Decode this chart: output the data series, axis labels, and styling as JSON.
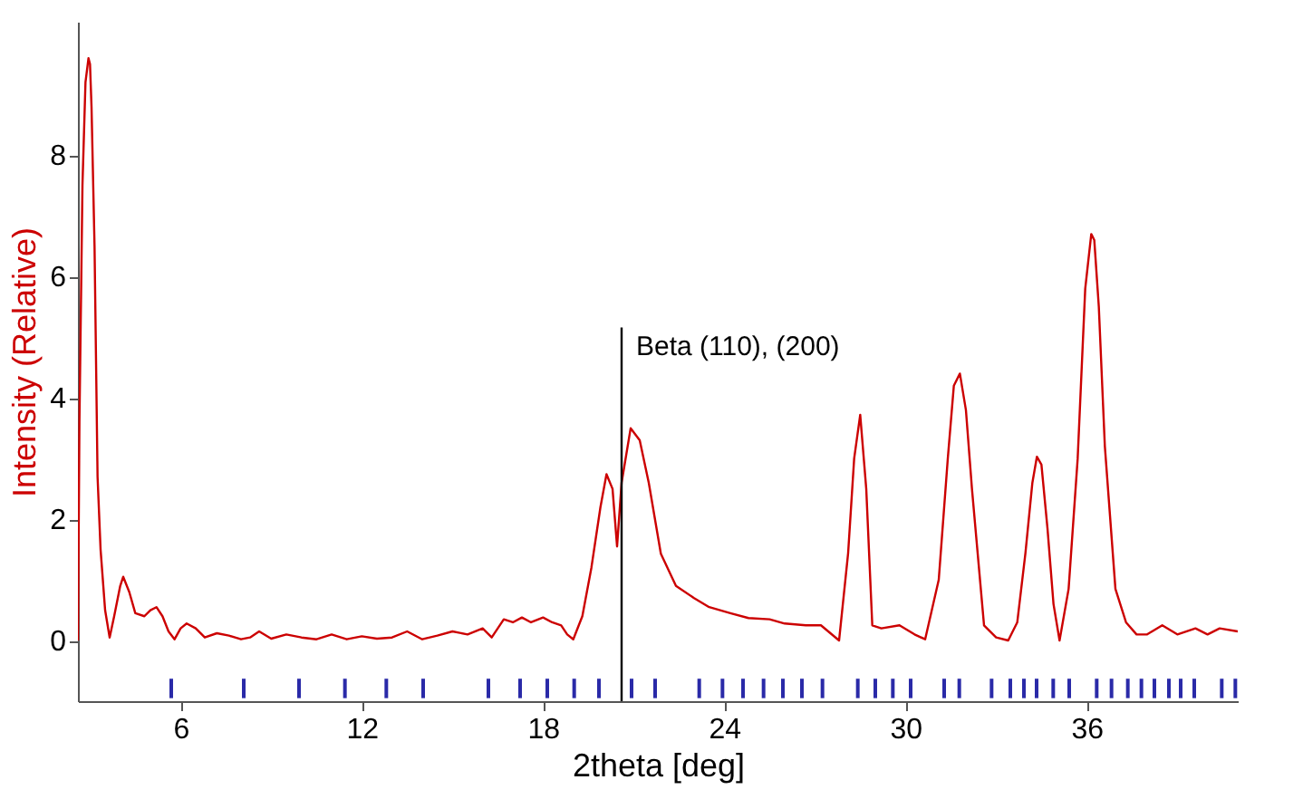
{
  "chart_data": {
    "type": "line",
    "xlabel": "2theta [deg]",
    "ylabel": "Intensity (Relative)",
    "xlim": [
      2.6,
      41
    ],
    "ylim": [
      -1,
      10.2
    ],
    "xticks": [
      6,
      12,
      18,
      24,
      30,
      36
    ],
    "yticks": [
      0,
      2,
      4,
      6,
      8
    ],
    "grid": false,
    "legend": false,
    "ref_lines": [
      {
        "axis": "x",
        "value": 20.6,
        "label": "Beta (110), (200)",
        "color": "#000000"
      }
    ],
    "series": [
      {
        "type": "line",
        "color": "#cc0000",
        "x": [
          2.6,
          2.65,
          2.75,
          2.85,
          2.95,
          3.0,
          3.05,
          3.15,
          3.25,
          3.35,
          3.5,
          3.65,
          3.8,
          4.0,
          4.1,
          4.3,
          4.5,
          4.8,
          5.0,
          5.2,
          5.4,
          5.6,
          5.8,
          6.0,
          6.2,
          6.5,
          6.8,
          7.2,
          7.6,
          8.0,
          8.3,
          8.6,
          9.0,
          9.5,
          10.0,
          10.5,
          11.0,
          11.5,
          12.0,
          12.5,
          13.0,
          13.5,
          14.0,
          14.5,
          15.0,
          15.5,
          16.0,
          16.3,
          16.7,
          17.0,
          17.3,
          17.6,
          18.0,
          18.3,
          18.6,
          18.8,
          19.0,
          19.3,
          19.6,
          19.9,
          20.1,
          20.3,
          20.45,
          20.6,
          20.9,
          21.2,
          21.5,
          21.9,
          22.4,
          23.0,
          23.5,
          24.2,
          24.8,
          25.5,
          26.0,
          26.7,
          27.2,
          27.8,
          28.1,
          28.3,
          28.5,
          28.7,
          28.9,
          29.2,
          29.8,
          30.3,
          30.65,
          31.1,
          31.4,
          31.6,
          31.8,
          32.0,
          32.2,
          32.6,
          33.0,
          33.4,
          33.7,
          33.97,
          34.2,
          34.35,
          34.5,
          34.7,
          34.9,
          35.1,
          35.4,
          35.7,
          35.95,
          36.15,
          36.25,
          36.4,
          36.6,
          36.95,
          37.3,
          37.65,
          38.0,
          38.5,
          39.0,
          39.6,
          40.0,
          40.4,
          41.0
        ],
        "values": [
          0,
          3.6,
          7.5,
          9.2,
          9.6,
          9.5,
          8.8,
          6.5,
          2.7,
          1.5,
          0.5,
          0.05,
          0.4,
          0.9,
          1.05,
          0.8,
          0.45,
          0.4,
          0.5,
          0.55,
          0.4,
          0.15,
          0.02,
          0.2,
          0.28,
          0.2,
          0.05,
          0.12,
          0.08,
          0.02,
          0.05,
          0.15,
          0.03,
          0.1,
          0.05,
          0.02,
          0.1,
          0.02,
          0.07,
          0.03,
          0.05,
          0.15,
          0.02,
          0.08,
          0.15,
          0.1,
          0.2,
          0.05,
          0.35,
          0.3,
          0.38,
          0.3,
          0.38,
          0.3,
          0.25,
          0.1,
          0.02,
          0.4,
          1.2,
          2.2,
          2.74,
          2.5,
          1.55,
          2.6,
          3.5,
          3.3,
          2.6,
          1.43,
          0.9,
          0.7,
          0.55,
          0.45,
          0.37,
          0.35,
          0.28,
          0.25,
          0.25,
          0.0,
          1.44,
          3.0,
          3.72,
          2.5,
          0.25,
          0.2,
          0.25,
          0.1,
          0.02,
          1.0,
          3.0,
          4.2,
          4.4,
          3.8,
          2.5,
          0.25,
          0.05,
          0.0,
          0.3,
          1.44,
          2.6,
          3.03,
          2.9,
          1.85,
          0.6,
          0.0,
          0.85,
          3.0,
          5.8,
          6.7,
          6.6,
          5.5,
          3.2,
          0.85,
          0.3,
          0.1,
          0.1,
          0.25,
          0.1,
          0.2,
          0.1,
          0.2,
          0.15
        ]
      },
      {
        "type": "bar",
        "color": "#2a2aa8",
        "base": [
          -0.95,
          -0.95,
          -0.95,
          -0.95,
          -0.95,
          -0.95,
          -0.95,
          -0.95,
          -0.95,
          -0.95,
          -0.95,
          -0.95,
          -0.95,
          -0.95,
          -0.95,
          -0.95,
          -0.95,
          -0.95,
          -0.95,
          -0.95,
          -0.95,
          -0.95,
          -0.95,
          -0.95,
          -0.95,
          -0.95,
          -0.95,
          -0.95,
          -0.95,
          -0.95,
          -0.95,
          -0.95,
          -0.95,
          -0.95,
          -0.95,
          -0.95,
          -0.95,
          -0.95,
          -0.95,
          -0.95,
          -0.95,
          -0.95
        ],
        "x": [
          5.69,
          8.09,
          9.92,
          11.44,
          12.81,
          14.03,
          16.19,
          17.24,
          18.14,
          19.03,
          19.85,
          20.93,
          21.71,
          23.17,
          23.94,
          24.62,
          25.3,
          25.94,
          26.57,
          27.25,
          28.42,
          29.0,
          29.58,
          30.17,
          31.28,
          31.78,
          32.85,
          33.47,
          33.92,
          34.34,
          34.89,
          35.42,
          36.33,
          36.82,
          37.36,
          37.81,
          38.24,
          38.72,
          39.11,
          39.56,
          40.47,
          40.92
        ],
        "values": [
          0.32,
          0.32,
          0.32,
          0.32,
          0.32,
          0.32,
          0.32,
          0.32,
          0.32,
          0.32,
          0.32,
          0.32,
          0.32,
          0.32,
          0.32,
          0.32,
          0.32,
          0.32,
          0.32,
          0.32,
          0.32,
          0.32,
          0.32,
          0.32,
          0.32,
          0.32,
          0.32,
          0.32,
          0.32,
          0.32,
          0.32,
          0.32,
          0.32,
          0.32,
          0.32,
          0.32,
          0.32,
          0.32,
          0.32,
          0.32,
          0.32,
          0.32
        ]
      }
    ]
  }
}
